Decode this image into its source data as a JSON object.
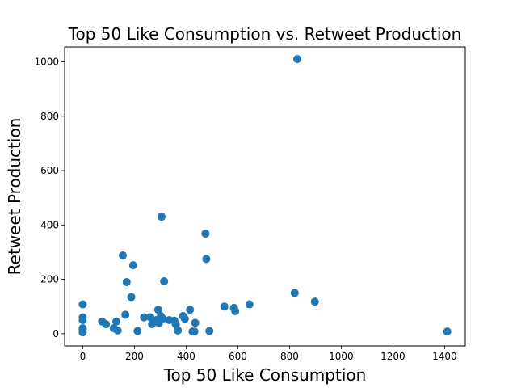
{
  "chart_data": {
    "type": "scatter",
    "title": "Top 50 Like Consumption vs. Retweet Production",
    "xlabel": "Top 50 Like Consumption",
    "ylabel": "Retweet Production",
    "xlim": [
      -70,
      1480
    ],
    "ylim": [
      -45,
      1055
    ],
    "xticks": [
      0,
      200,
      400,
      600,
      800,
      1000,
      1200,
      1400
    ],
    "yticks": [
      0,
      200,
      400,
      600,
      800,
      1000
    ],
    "grid": false,
    "marker_color": "#1f77b4",
    "points": [
      {
        "x": 0,
        "y": 108
      },
      {
        "x": 0,
        "y": 60
      },
      {
        "x": 0,
        "y": 50
      },
      {
        "x": 0,
        "y": 20
      },
      {
        "x": 0,
        "y": 15
      },
      {
        "x": 0,
        "y": 5
      },
      {
        "x": 75,
        "y": 45
      },
      {
        "x": 90,
        "y": 35
      },
      {
        "x": 120,
        "y": 20
      },
      {
        "x": 130,
        "y": 45
      },
      {
        "x": 135,
        "y": 12
      },
      {
        "x": 155,
        "y": 288
      },
      {
        "x": 165,
        "y": 70
      },
      {
        "x": 170,
        "y": 190
      },
      {
        "x": 188,
        "y": 135
      },
      {
        "x": 195,
        "y": 252
      },
      {
        "x": 212,
        "y": 10
      },
      {
        "x": 237,
        "y": 60
      },
      {
        "x": 262,
        "y": 60
      },
      {
        "x": 268,
        "y": 35
      },
      {
        "x": 285,
        "y": 50
      },
      {
        "x": 292,
        "y": 88
      },
      {
        "x": 295,
        "y": 40
      },
      {
        "x": 302,
        "y": 65
      },
      {
        "x": 305,
        "y": 430
      },
      {
        "x": 310,
        "y": 55
      },
      {
        "x": 315,
        "y": 193
      },
      {
        "x": 335,
        "y": 50
      },
      {
        "x": 355,
        "y": 48
      },
      {
        "x": 360,
        "y": 35
      },
      {
        "x": 368,
        "y": 12
      },
      {
        "x": 388,
        "y": 65
      },
      {
        "x": 395,
        "y": 55
      },
      {
        "x": 415,
        "y": 88
      },
      {
        "x": 425,
        "y": 8
      },
      {
        "x": 432,
        "y": 8
      },
      {
        "x": 435,
        "y": 40
      },
      {
        "x": 475,
        "y": 368
      },
      {
        "x": 478,
        "y": 275
      },
      {
        "x": 490,
        "y": 10
      },
      {
        "x": 548,
        "y": 100
      },
      {
        "x": 585,
        "y": 95
      },
      {
        "x": 590,
        "y": 83
      },
      {
        "x": 645,
        "y": 108
      },
      {
        "x": 820,
        "y": 150
      },
      {
        "x": 830,
        "y": 1010
      },
      {
        "x": 898,
        "y": 118
      },
      {
        "x": 1410,
        "y": 8
      }
    ]
  }
}
